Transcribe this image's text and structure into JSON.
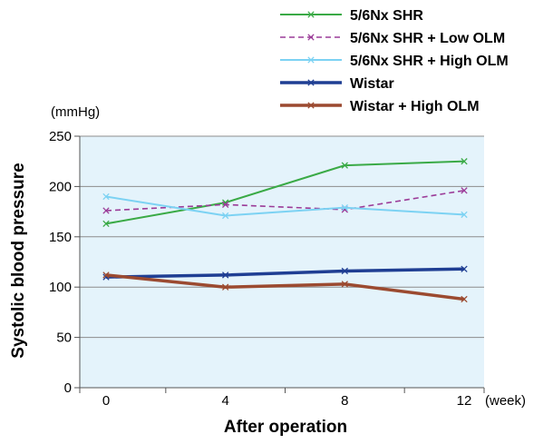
{
  "chart_data": {
    "type": "line",
    "ylabel": "Systolic blood pressure",
    "y_unit": "(mmHg)",
    "xlabel": "After operation",
    "x_unit": "(week)",
    "x": [
      0,
      4,
      8,
      12
    ],
    "x_tick_labels": [
      "0",
      "4",
      "8",
      "12"
    ],
    "ylim": [
      0,
      250
    ],
    "y_ticks": [
      0,
      50,
      100,
      150,
      200,
      250
    ],
    "y_tick_labels": [
      "0",
      "50",
      "100",
      "150",
      "200",
      "250"
    ],
    "grid": true,
    "legend_position": "top-right",
    "plot_background": "#e4f3fb",
    "series": [
      {
        "name": "5/6Nx SHR",
        "values": [
          163,
          184,
          221,
          225
        ],
        "color": "#3aaa46",
        "dash": "solid",
        "width": 2
      },
      {
        "name": "5/6Nx SHR + Low OLM",
        "values": [
          176,
          182,
          177,
          196
        ],
        "color": "#9b3b98",
        "dash": "dashed",
        "width": 1.6
      },
      {
        "name": "5/6Nx SHR + High OLM",
        "values": [
          190,
          171,
          179,
          172
        ],
        "color": "#7cd2f3",
        "dash": "solid",
        "width": 2
      },
      {
        "name": "Wistar",
        "values": [
          110,
          112,
          116,
          118
        ],
        "color": "#1f3e93",
        "dash": "solid",
        "width": 3.5
      },
      {
        "name": "Wistar + High OLM",
        "values": [
          112,
          100,
          103,
          88
        ],
        "color": "#9b4a30",
        "dash": "solid",
        "width": 3.5
      }
    ]
  }
}
